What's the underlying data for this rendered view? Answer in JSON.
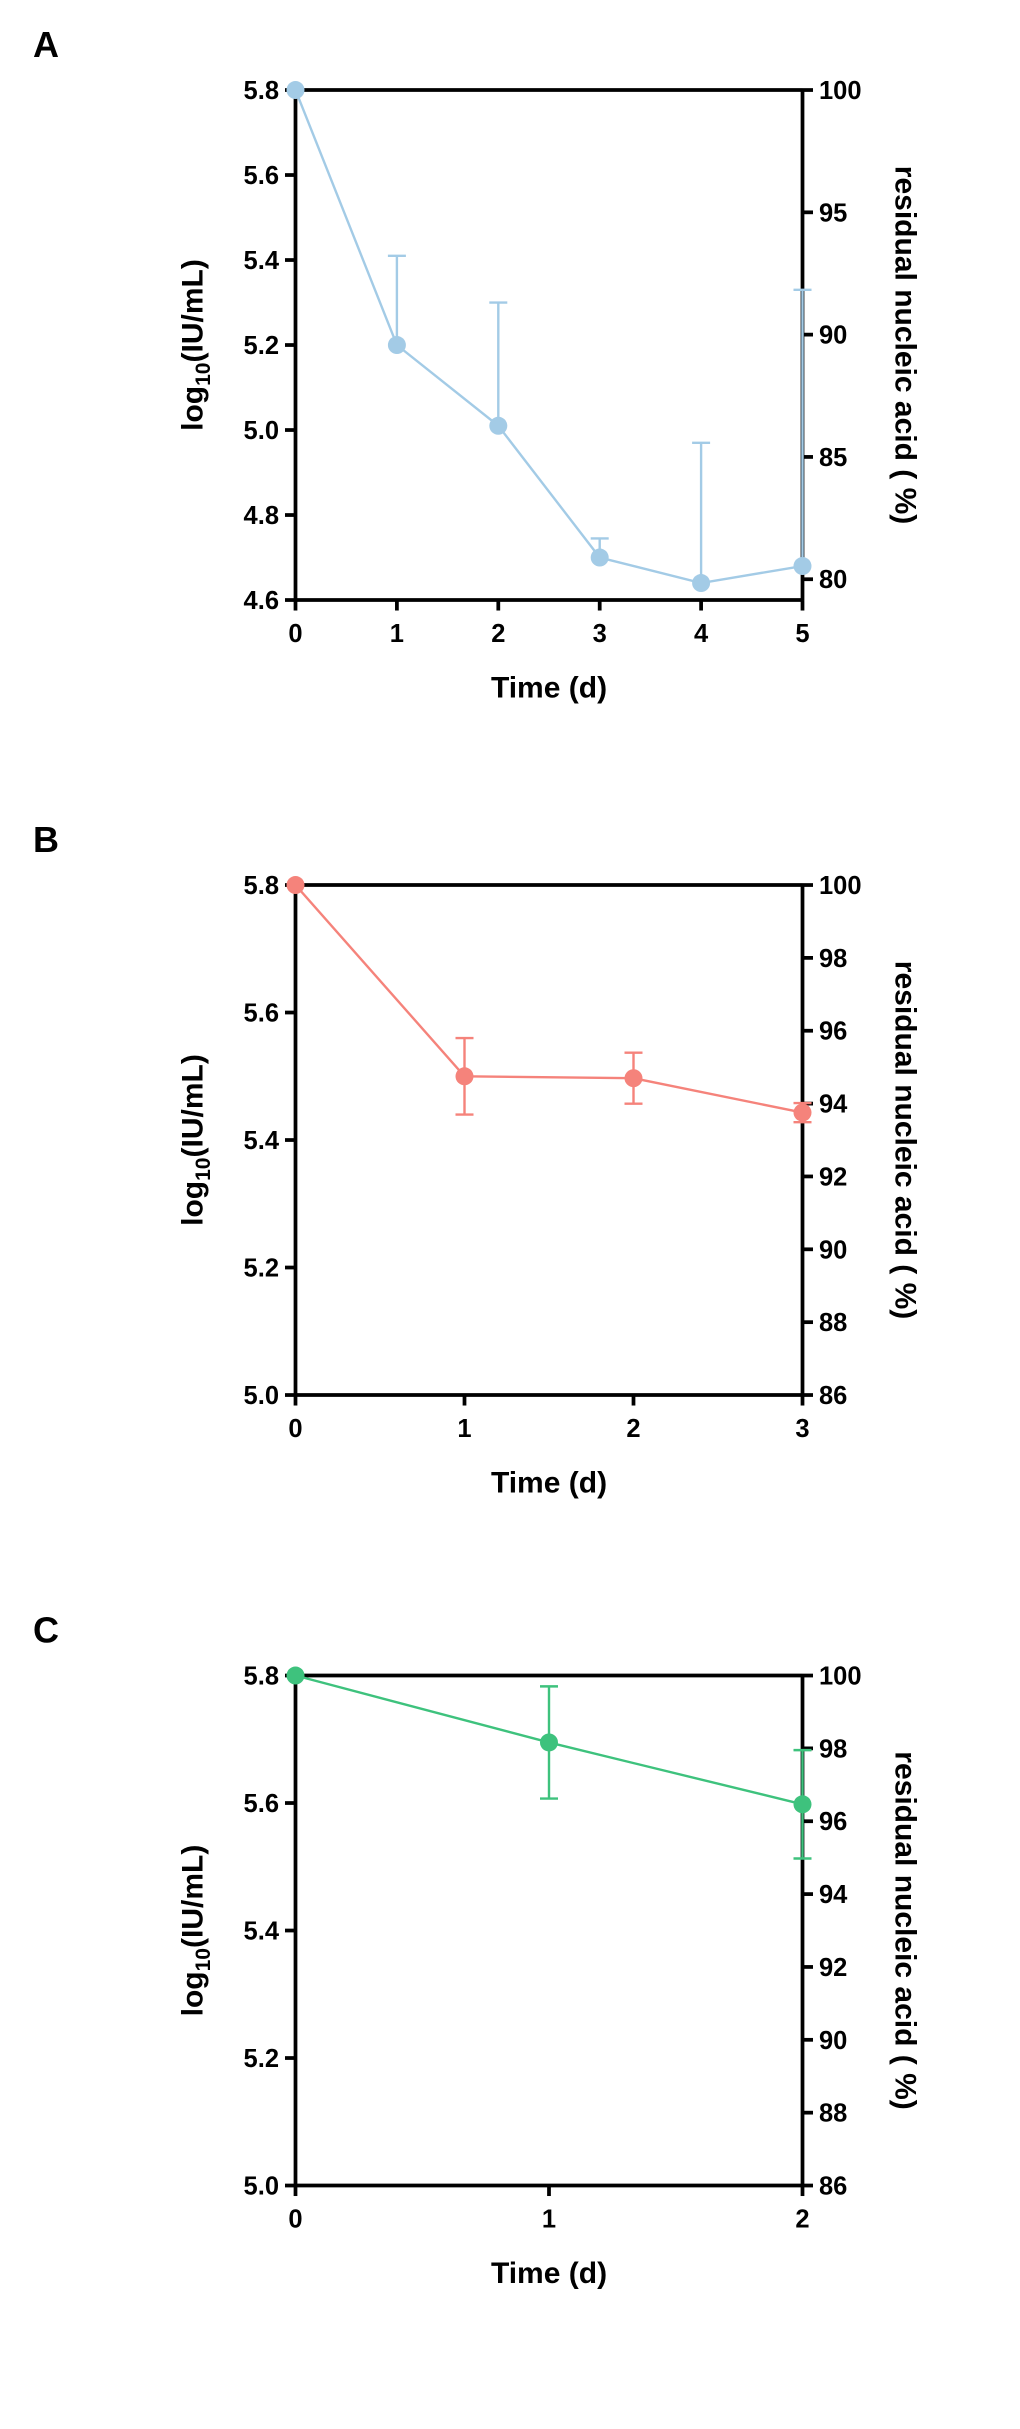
{
  "chart_data": [
    {
      "type": "line",
      "panel": "A",
      "xlabel": "Time (d)",
      "ylabel": [
        "log",
        "10",
        "(IU/mL)"
      ],
      "y2label": "residual nucleic acid ( %)",
      "x": [
        0,
        1,
        2,
        3,
        4,
        5
      ],
      "xlim": [
        0,
        5
      ],
      "xticks": [
        0,
        1,
        2,
        3,
        4,
        5
      ],
      "ylim": [
        4.6,
        5.8
      ],
      "yticks": [
        4.6,
        4.8,
        {
          "value": 5,
          "label": "5.0"
        },
        5.2,
        5.4,
        5.6,
        5.8
      ],
      "y2lim": [
        79.15,
        100
      ],
      "y2ticks": [
        80,
        85,
        90,
        95,
        100
      ],
      "error_bars": "upper",
      "series": [
        {
          "color": "#a3cbe6",
          "values": [
            5.8,
            5.2,
            5.01,
            4.7,
            4.64,
            4.68
          ],
          "errors": [
            0,
            0.21,
            0.29,
            0.045,
            0.33,
            0.65
          ]
        }
      ]
    },
    {
      "type": "line",
      "panel": "B",
      "xlabel": "Time (d)",
      "ylabel": [
        "log",
        "10",
        "(IU/mL)"
      ],
      "y2label": "residual nucleic acid ( %)",
      "x": [
        0,
        1,
        2,
        3
      ],
      "xlim": [
        0,
        3
      ],
      "xticks": [
        0,
        1,
        2,
        3
      ],
      "ylim": [
        5,
        5.8
      ],
      "yticks": [
        {
          "value": 5,
          "label": "5.0"
        },
        5.2,
        5.4,
        5.6,
        5.8
      ],
      "y2lim": [
        86,
        100
      ],
      "y2ticks": [
        86,
        88,
        90,
        92,
        94,
        96,
        98,
        100
      ],
      "error_bars": "both",
      "series": [
        {
          "color": "#f5837b",
          "values": [
            5.8,
            5.5,
            5.497,
            5.443
          ],
          "errors": [
            0,
            0.06,
            0.04,
            0.015
          ]
        }
      ]
    },
    {
      "type": "line",
      "panel": "C",
      "xlabel": "Time (d)",
      "ylabel": [
        "log",
        "10",
        "(IU/mL)"
      ],
      "y2label": "residual nucleic acid ( %)",
      "x": [
        0,
        1,
        2
      ],
      "xlim": [
        0,
        2
      ],
      "xticks": [
        0,
        1,
        2
      ],
      "ylim": [
        5,
        5.8
      ],
      "yticks": [
        {
          "value": 5,
          "label": "5.0"
        },
        5.2,
        5.4,
        5.6,
        5.8
      ],
      "y2lim": [
        86,
        100
      ],
      "y2ticks": [
        86,
        88,
        90,
        92,
        94,
        96,
        98,
        100
      ],
      "error_bars": "both",
      "series": [
        {
          "color": "#3ec27d",
          "values": [
            5.8,
            5.695,
            5.598
          ],
          "errors": [
            0,
            0.088,
            0.085
          ]
        }
      ]
    }
  ]
}
